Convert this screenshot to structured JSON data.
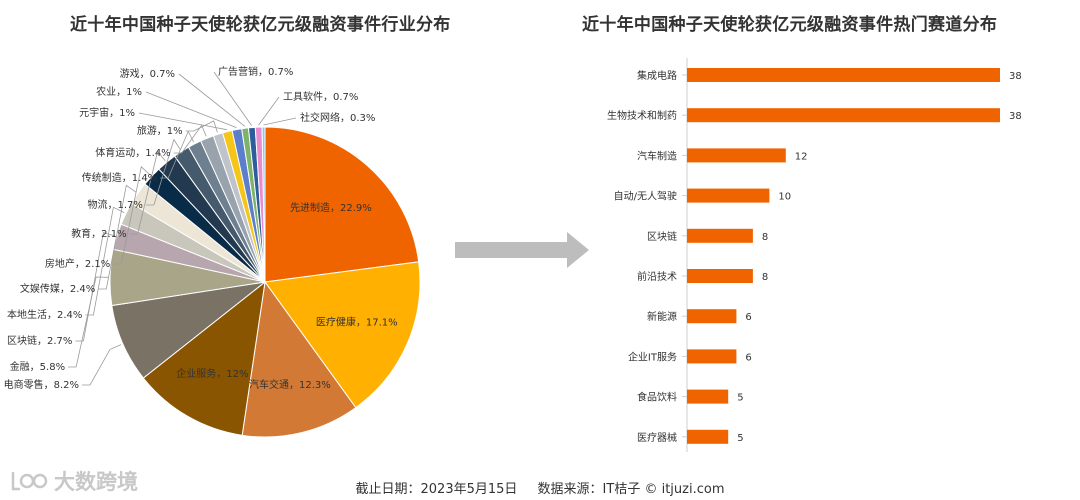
{
  "chart_data": [
    {
      "type": "pie",
      "title": "近十年中国种子天使轮获亿元级融资事件行业分布",
      "unit": "%",
      "slices": [
        {
          "label": "先进制造",
          "value": 22.9,
          "display": "先进制造，22.9%",
          "color": "#F06400"
        },
        {
          "label": "医疗健康",
          "value": 17.1,
          "display": "医疗健康，17.1%",
          "color": "#FFB000"
        },
        {
          "label": "汽车交通",
          "value": 12.3,
          "display": "汽车交通，12.3%",
          "color": "#D27A35"
        },
        {
          "label": "企业服务",
          "value": 12,
          "display": "企业服务，12%",
          "color": "#8A5500"
        },
        {
          "label": "电商零售",
          "value": 8.2,
          "display": "电商零售，8.2%",
          "color": "#7B7266"
        },
        {
          "label": "金融",
          "value": 5.8,
          "display": "金融，5.8%",
          "color": "#A8A589"
        },
        {
          "label": "区块链",
          "value": 2.7,
          "display": "区块链，2.7%",
          "color": "#B8A6AE"
        },
        {
          "label": "本地生活",
          "value": 2.4,
          "display": "本地生活，2.4%",
          "color": "#C9C6BC"
        },
        {
          "label": "文娱传媒",
          "value": 2.4,
          "display": "文娱传媒，2.4%",
          "color": "#EDE6D6"
        },
        {
          "label": "房地产",
          "value": 2.1,
          "display": "房地产，2.1%",
          "color": "#082C48"
        },
        {
          "label": "教育",
          "value": 2.1,
          "display": "教育，2.1%",
          "color": "#23394F"
        },
        {
          "label": "物流",
          "value": 1.7,
          "display": "物流，1.7%",
          "color": "#465A6E"
        },
        {
          "label": "传统制造",
          "value": 1.4,
          "display": "传统制造，1.4%",
          "color": "#6E7F90"
        },
        {
          "label": "体育运动",
          "value": 1.4,
          "display": "体育运动，1.4%",
          "color": "#98A3AE"
        },
        {
          "label": "旅游",
          "value": 1,
          "display": "旅游，1%",
          "color": "#BFC4CA"
        },
        {
          "label": "元宇宙",
          "value": 1,
          "display": "元宇宙，1%",
          "color": "#F5C518"
        },
        {
          "label": "农业",
          "value": 1,
          "display": "农业，1%",
          "color": "#5B7FCB"
        },
        {
          "label": "游戏",
          "value": 0.7,
          "display": "游戏，0.7%",
          "color": "#7DB36A"
        },
        {
          "label": "广告营销",
          "value": 0.7,
          "display": "广告营销，0.7%",
          "color": "#2D5D9B"
        },
        {
          "label": "工具软件",
          "value": 0.7,
          "display": "工具软件，0.7%",
          "color": "#E88BD0"
        },
        {
          "label": "社交网络",
          "value": 0.3,
          "display": "社交网络，0.3%",
          "color": "#8DC9EA"
        }
      ]
    },
    {
      "type": "bar",
      "orientation": "horizontal",
      "title": "近十年中国种子天使轮获亿元级融资事件热门赛道分布",
      "categories": [
        "集成电路",
        "生物技术和制药",
        "汽车制造",
        "自动/无人驾驶",
        "区块链",
        "前沿技术",
        "新能源",
        "企业IT服务",
        "食品饮料",
        "医疗器械"
      ],
      "values": [
        38,
        38,
        12,
        10,
        8,
        8,
        6,
        6,
        5,
        5
      ],
      "xlim": [
        0,
        38
      ],
      "bar_color": "#F06400"
    }
  ],
  "footer": {
    "date": "截止日期：2023年5月15日",
    "source": "数据来源：IT桔子 © itjuzi.com"
  },
  "watermark": {
    "text": "大数跨境",
    "icon": "brand-logo-icon"
  },
  "arrow_icon": "right-arrow-icon"
}
